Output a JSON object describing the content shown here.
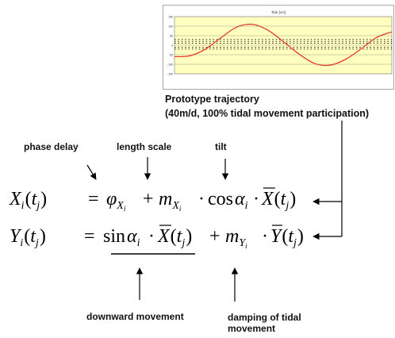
{
  "chart": {
    "title": "Tide [cm]",
    "y_ticks": [
      "150",
      "100",
      "50",
      "0",
      "-50",
      "-100",
      "-150"
    ]
  },
  "chart_data": {
    "type": "line",
    "title": "Tide [cm]",
    "xlabel": "",
    "ylabel": "",
    "ylim": [
      -150,
      150
    ],
    "xlim": [
      0,
      56
    ],
    "x": [
      0,
      4,
      8,
      12,
      16,
      20,
      24,
      28,
      32,
      36,
      40,
      44,
      48,
      52,
      56
    ],
    "series": [
      {
        "values": [
          -60,
          -55,
          -20,
          40,
          95,
          110,
          80,
          20,
          -45,
          -95,
          -105,
          -75,
          -20,
          40,
          70
        ]
      }
    ],
    "grid": true,
    "band_lines": [
      30,
      20,
      10,
      -10,
      -20
    ]
  },
  "caption": {
    "line1": "Prototype trajectory",
    "line2": "(40m/d, 100% tidal movement participation)"
  },
  "labels": {
    "phase_delay": "phase delay",
    "length_scale": "length scale",
    "tilt": "tilt",
    "downward_movement": "downward movement",
    "damping_line1": "damping of tidal",
    "damping_line2": "movement"
  },
  "equations": {
    "eq1": {
      "X": "X",
      "i": "i",
      "open": "(",
      "t": "t",
      "j": "j",
      "close": ")",
      "equals": "=",
      "phi": "φ",
      "Xsub": "X",
      "isub": "i",
      "plus": "+",
      "m": "m",
      "cos": "cos",
      "alpha": "α",
      "dot": "·"
    },
    "eq2": {
      "Y": "Y",
      "i": "i",
      "open": "(",
      "t": "t",
      "j": "j",
      "close": ")",
      "equals": "=",
      "sin": "sin",
      "alpha": "α",
      "dot": "·",
      "X": "X",
      "plus": "+",
      "m": "m",
      "Ysub": "Y",
      "isub": "i"
    }
  }
}
